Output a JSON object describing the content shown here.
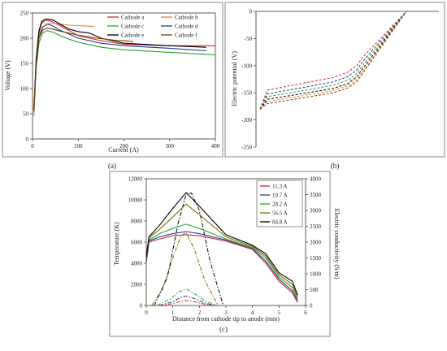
{
  "chart_data": [
    {
      "type": "line",
      "panel_label": "(a)",
      "xlabel": "Current (A)",
      "ylabel": "Voltage (V)",
      "xlim": [
        0,
        400
      ],
      "ylim": [
        0,
        250
      ],
      "xticks": [
        0,
        100,
        200,
        300,
        400
      ],
      "yticks": [
        0,
        50,
        100,
        150,
        200,
        250
      ],
      "legend_position": "top-right",
      "series": [
        {
          "name": "Cathode a",
          "color": "#d62728",
          "style": "solid",
          "x": [
            3,
            8,
            14,
            20,
            28,
            40,
            60,
            80,
            100,
            150,
            200,
            300,
            400
          ],
          "y": [
            60,
            150,
            210,
            230,
            236,
            234,
            225,
            215,
            205,
            195,
            188,
            185,
            185
          ]
        },
        {
          "name": "Cathode b",
          "color": "#e8833a",
          "style": "solid",
          "x": [
            3,
            8,
            14,
            22,
            32,
            45,
            60,
            80,
            100,
            120,
            135
          ],
          "y": [
            45,
            150,
            205,
            222,
            228,
            230,
            228,
            226,
            225,
            224,
            223
          ]
        },
        {
          "name": "Cathode c",
          "color": "#2ca02c",
          "style": "solid",
          "x": [
            3,
            8,
            14,
            22,
            32,
            45,
            60,
            80,
            100,
            150,
            200,
            300,
            400
          ],
          "y": [
            55,
            140,
            190,
            210,
            215,
            212,
            205,
            198,
            192,
            182,
            177,
            172,
            167
          ]
        },
        {
          "name": "Cathode d",
          "color": "#1f3a93",
          "style": "solid",
          "x": [
            3,
            8,
            14,
            22,
            32,
            45,
            60,
            80,
            100,
            150,
            200,
            300,
            380
          ],
          "y": [
            55,
            145,
            200,
            222,
            228,
            224,
            216,
            208,
            200,
            190,
            185,
            180,
            175
          ]
        },
        {
          "name": "Cathode e",
          "color": "#000000",
          "style": "solid",
          "x": [
            3,
            8,
            14,
            20,
            26,
            34,
            45,
            60,
            80,
            100,
            125,
            150,
            200,
            300,
            380
          ],
          "y": [
            60,
            160,
            215,
            233,
            237,
            238,
            236,
            228,
            218,
            213,
            210,
            200,
            190,
            185,
            182
          ]
        },
        {
          "name": "Cathode f",
          "color": "#7f3f00",
          "style": "solid",
          "x": [
            3,
            8,
            14,
            22,
            32,
            45,
            60,
            80,
            100,
            120,
            140,
            160,
            180,
            200,
            220
          ],
          "y": [
            55,
            150,
            200,
            216,
            220,
            218,
            214,
            210,
            206,
            203,
            200,
            198,
            196,
            195,
            193
          ]
        }
      ]
    },
    {
      "type": "line",
      "panel_label": "(b)",
      "xlabel": "",
      "ylabel": "Electric potential (V)",
      "ylim": [
        -250,
        0
      ],
      "yticks": [
        0,
        -50,
        -100,
        -150,
        -200,
        -250
      ],
      "series": [
        {
          "color": "#d62728",
          "style": "dashed",
          "x": [
            0,
            0.05,
            0.3,
            0.5,
            0.6,
            0.66,
            0.7,
            1.0
          ],
          "y": [
            -180,
            -145,
            -132,
            -122,
            -112,
            -100,
            -85,
            0
          ]
        },
        {
          "color": "#1f3a93",
          "style": "dashed",
          "x": [
            0,
            0.05,
            0.3,
            0.5,
            0.6,
            0.66,
            0.7,
            1.0
          ],
          "y": [
            -180,
            -152,
            -140,
            -130,
            -120,
            -108,
            -93,
            0
          ]
        },
        {
          "color": "#2ca02c",
          "style": "dashed",
          "x": [
            0,
            0.05,
            0.3,
            0.5,
            0.6,
            0.66,
            0.7,
            1.0
          ],
          "y": [
            -180,
            -157,
            -146,
            -136,
            -127,
            -115,
            -100,
            0
          ]
        },
        {
          "color": "#000000",
          "style": "dashed",
          "x": [
            0,
            0.05,
            0.3,
            0.5,
            0.6,
            0.66,
            0.7,
            1.0
          ],
          "y": [
            -180,
            -162,
            -151,
            -142,
            -133,
            -121,
            -106,
            0
          ]
        },
        {
          "color": "#e8833a",
          "style": "dashed",
          "x": [
            0,
            0.05,
            0.3,
            0.5,
            0.6,
            0.66,
            0.7,
            1.0
          ],
          "y": [
            -180,
            -166,
            -155,
            -146,
            -137,
            -126,
            -111,
            0
          ]
        },
        {
          "color": "#7f3f00",
          "style": "dashed",
          "x": [
            0,
            0.05,
            0.3,
            0.5,
            0.6,
            0.66,
            0.7,
            1.0
          ],
          "y": [
            -180,
            -170,
            -159,
            -150,
            -141,
            -130,
            -115,
            0
          ]
        }
      ]
    },
    {
      "type": "line",
      "panel_label": "(c)",
      "xlabel": "Distance from cathode tip to anode (mm)",
      "ylabel": "Temperature (K)",
      "y2label": "Electric conductivity (S/m)",
      "xlim": [
        0,
        6
      ],
      "ylim": [
        0,
        12000
      ],
      "y2lim": [
        0,
        4000
      ],
      "xticks": [
        0,
        1,
        2,
        3,
        4,
        5,
        6
      ],
      "yticks": [
        0,
        2000,
        4000,
        6000,
        8000,
        10000,
        12000
      ],
      "y2ticks": [
        0,
        500,
        1000,
        1500,
        2000,
        2500,
        3000,
        3500,
        4000
      ],
      "legend_position": "top-right",
      "temperature": [
        {
          "name": "11.3 A",
          "color": "#d62728",
          "x": [
            0,
            0.1,
            0.5,
            1.0,
            1.5,
            2.0,
            3.0,
            4.0,
            4.5,
            5.0,
            5.5,
            5.7
          ],
          "y": [
            4000,
            6000,
            6300,
            6600,
            6700,
            6600,
            6100,
            5300,
            4000,
            2300,
            1200,
            300
          ]
        },
        {
          "name": "19.7 A",
          "color": "#1f3a93",
          "x": [
            0,
            0.1,
            0.5,
            1.0,
            1.5,
            2.0,
            3.0,
            4.0,
            4.5,
            5.0,
            5.5,
            5.7
          ],
          "y": [
            4200,
            6100,
            6500,
            6800,
            7000,
            6800,
            6200,
            5400,
            4200,
            2500,
            1400,
            400
          ]
        },
        {
          "name": "28.2 A",
          "color": "#2ca02c",
          "x": [
            0,
            0.1,
            0.5,
            1.0,
            1.5,
            2.0,
            3.0,
            4.0,
            4.5,
            5.0,
            5.5,
            5.7
          ],
          "y": [
            4400,
            6200,
            6800,
            7300,
            7700,
            7300,
            6300,
            5500,
            4500,
            2700,
            1700,
            600
          ]
        },
        {
          "name": "56.5 A",
          "color": "#7f6f00",
          "x": [
            0,
            0.1,
            0.5,
            1.0,
            1.5,
            2.0,
            3.0,
            4.0,
            4.5,
            5.0,
            5.5,
            5.7
          ],
          "y": [
            4500,
            6400,
            7200,
            8400,
            9600,
            8600,
            6500,
            5600,
            4700,
            2900,
            2000,
            800
          ]
        },
        {
          "name": "84.8 A",
          "color": "#000000",
          "x": [
            0,
            0.1,
            0.5,
            1.0,
            1.5,
            2.0,
            3.0,
            4.0,
            4.5,
            5.0,
            5.5,
            5.7
          ],
          "y": [
            4600,
            6500,
            7600,
            9200,
            10700,
            9400,
            6700,
            5700,
            4900,
            3100,
            2300,
            1000
          ]
        }
      ],
      "conductivity": [
        {
          "color": "#d62728",
          "x": [
            0.5,
            1.0,
            1.3,
            1.5,
            1.8,
            2.2,
            2.6
          ],
          "y": [
            0,
            60,
            130,
            160,
            120,
            40,
            0
          ]
        },
        {
          "color": "#1f3a93",
          "x": [
            0.5,
            1.0,
            1.3,
            1.5,
            1.8,
            2.2,
            2.6
          ],
          "y": [
            0,
            120,
            260,
            300,
            220,
            80,
            0
          ]
        },
        {
          "color": "#2ca02c",
          "x": [
            0.4,
            0.9,
            1.2,
            1.5,
            1.8,
            2.2,
            2.7
          ],
          "y": [
            0,
            200,
            420,
            520,
            380,
            150,
            0
          ]
        },
        {
          "color": "#7f6f00",
          "x": [
            0.2,
            0.6,
            1.0,
            1.3,
            1.5,
            1.8,
            2.2,
            2.7
          ],
          "y": [
            0,
            500,
            1500,
            2200,
            2300,
            1800,
            800,
            0
          ]
        },
        {
          "color": "#000000",
          "x": [
            0.3,
            0.8,
            1.2,
            1.5,
            1.7,
            2.0,
            2.4,
            2.9
          ],
          "y": [
            0,
            900,
            2600,
            3500,
            3550,
            3000,
            1400,
            0
          ]
        }
      ]
    }
  ]
}
